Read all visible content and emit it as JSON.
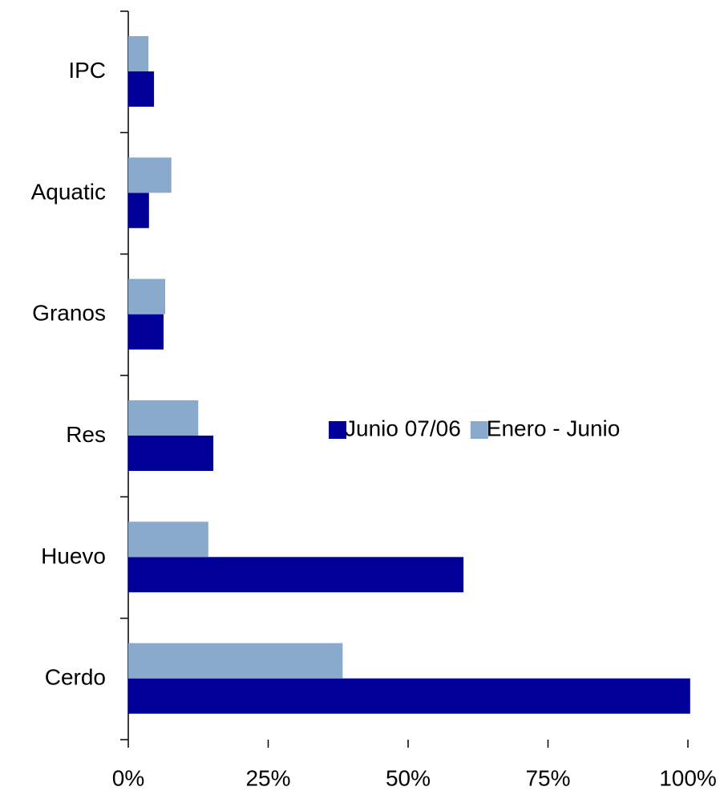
{
  "chart_data": {
    "type": "bar",
    "orientation": "horizontal",
    "categories": [
      "IPC",
      "Aquatic",
      "Granos",
      "Res",
      "Huevo",
      "Cerdo"
    ],
    "series": [
      {
        "name": "Junio 07/06",
        "color": "#000099",
        "values": [
          4.6,
          3.7,
          6.3,
          15.2,
          59.9,
          100.4
        ]
      },
      {
        "name": "Enero - Junio",
        "color": "#8aaacc",
        "values": [
          3.6,
          7.7,
          6.6,
          12.5,
          14.3,
          38.3
        ]
      }
    ],
    "xlim": [
      0,
      100
    ],
    "xticks": [
      {
        "value": 0,
        "label": "0%"
      },
      {
        "value": 25,
        "label": "25%"
      },
      {
        "value": 50,
        "label": "50%"
      },
      {
        "value": 75,
        "label": "75%"
      },
      {
        "value": 100,
        "label": "100%"
      }
    ],
    "grid": false,
    "legend": "right"
  }
}
